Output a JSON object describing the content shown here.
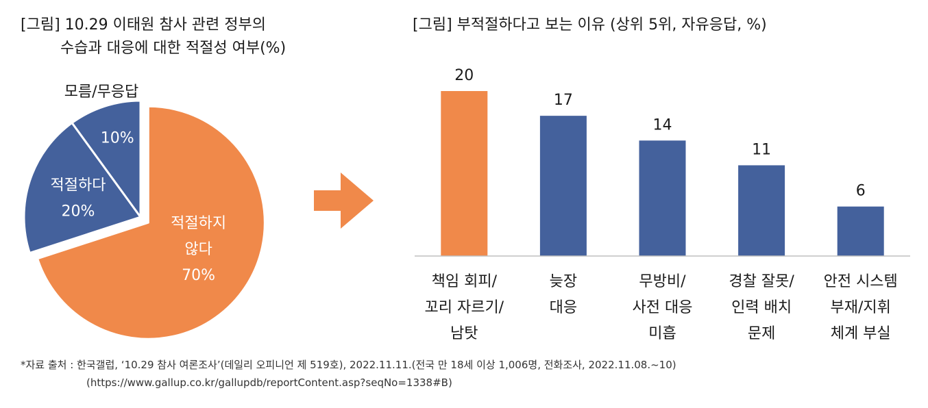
{
  "colors": {
    "orange": "#F0894A",
    "blue": "#44619C",
    "axis": "#bfbfbf"
  },
  "arrow_icon": "right-arrow-icon",
  "chart_data": [
    {
      "type": "pie",
      "title_line1": "[그림] 10.29 이태원 참사 관련 정부의",
      "title_line2": "수습과 대응에 대한 적절성 여부(%)",
      "slices": [
        {
          "label_line1": "적절하지",
          "label_line2": "않다",
          "value": 70,
          "value_text": "70%",
          "color": "#F0894A",
          "exploded": true
        },
        {
          "label_line1": "적절하다",
          "label_line2": "",
          "value": 20,
          "value_text": "20%",
          "color": "#44619C",
          "exploded": false
        },
        {
          "label_line1": "모름/무응답",
          "label_line2": "",
          "value": 10,
          "value_text": "10%",
          "color": "#44619C",
          "exploded": false
        }
      ]
    },
    {
      "type": "bar",
      "title": "[그림] 부적절하다고 보는 이유 (상위 5위, 자유응답, %)",
      "categories": [
        [
          "책임 회피/",
          "꼬리 자르기/",
          "남탓"
        ],
        [
          "늦장",
          "대응"
        ],
        [
          "무방비/",
          "사전 대응",
          "미흡"
        ],
        [
          "경찰 잘못/",
          "인력 배치",
          "문제"
        ],
        [
          "안전 시스템",
          "부재/지휘",
          "체계 부실"
        ]
      ],
      "values": [
        20,
        17,
        14,
        11,
        6
      ],
      "value_labels": [
        "20",
        "17",
        "14",
        "11",
        "6"
      ],
      "colors": [
        "#F0894A",
        "#44619C",
        "#44619C",
        "#44619C",
        "#44619C"
      ],
      "ylim": [
        0,
        20
      ]
    }
  ],
  "source": {
    "line1": "*자료 출처 : 한국갤럽, ‘10.29 참사 여론조사’(데일리 오피니언 제 519호), 2022.11.11.(전국 만 18세 이상 1,006명, 전화조사, 2022.11.08.~10)",
    "line2": "(https://www.gallup.co.kr/gallupdb/reportContent.asp?seqNo=1338#B)"
  }
}
